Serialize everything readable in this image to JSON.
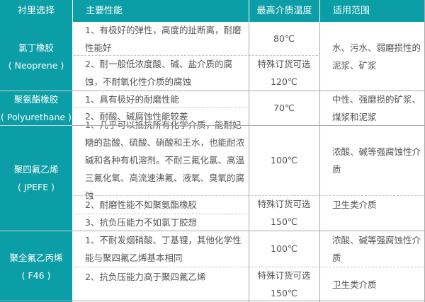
{
  "colors": {
    "teal": "#0b9ea6"
  },
  "header": [
    "衬里选择",
    "主要性能",
    "最高介质温度",
    "适用范围"
  ],
  "rows": [
    {
      "name": [
        "氯丁橡胶",
        "( Neoprene )"
      ],
      "props": [
        "1、有极好的弹性，高度的扯断离，耐磨性能好",
        "2、耐一般低浓度酸、碱、盐介质的腐蚀，不耐氧化性介质的腐蚀"
      ],
      "temps": [
        "80℃",
        "特殊订货可选",
        "120℃"
      ],
      "ranges": [
        "水、污水、弱磨损性的泥浆、矿浆"
      ]
    },
    {
      "name": [
        "聚氨酯橡胶",
        "( Polyurethane )"
      ],
      "props": [
        "1、具有极好的耐磨性能",
        "2、耐酸、碱腐蚀性能较差"
      ],
      "temps": [
        "70℃"
      ],
      "ranges": [
        "中性、强磨损的矿浆、煤浆和泥浆"
      ]
    },
    {
      "name": [
        "聚四氟乙烯",
        "( JPEFE )"
      ],
      "props": [
        "1、几乎可以抵抗所有化学介质，能耐妃糖的盐酸、硫酸、硝酸和王水，也能耐浓碱和各种有机溶剂。不耐三氟化氯、高温三氟化氧、高流速沸氟、液氧、臭氧的腐蚀",
        "2、耐磨性能不如聚氨酯橡胶",
        "3、抗负压能力不如氯丁胶想"
      ],
      "temps": [
        "100℃",
        "特殊订货可选",
        "150℃"
      ],
      "ranges": [
        "浓酸、碱等强腐蚀性介质",
        "卫生类介质"
      ]
    },
    {
      "name": [
        "聚全氟乙丙烯",
        "( F46 )"
      ],
      "props": [
        "1、不耐发烟硝酸、丁基锂，其他化学性能与聚四氟乙烯基本相同",
        "2、抗负压能力高于聚四氟乙烯"
      ],
      "temps": [
        "100℃",
        "特殊订货可选",
        "150℃"
      ],
      "ranges": [
        "浓酸、碱等强腐蚀性介质",
        "卫生类介质"
      ]
    }
  ]
}
